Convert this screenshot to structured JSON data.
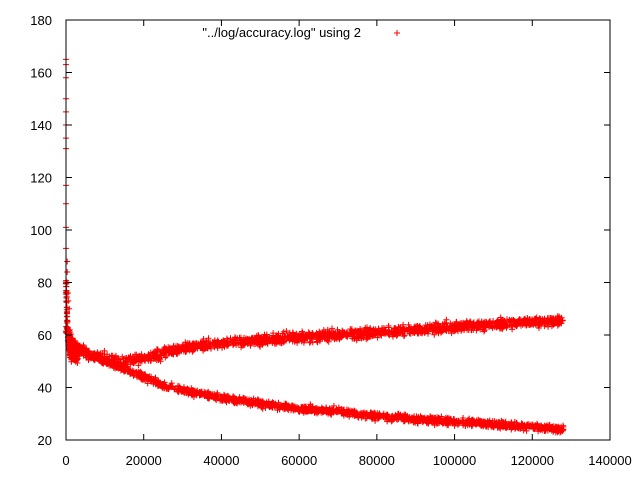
{
  "chart_data": {
    "type": "scatter",
    "title": "",
    "xlabel": "",
    "ylabel": "",
    "xlim": [
      0,
      140000
    ],
    "ylim": [
      20,
      180
    ],
    "x_ticks": [
      "0",
      "20000",
      "40000",
      "60000",
      "80000",
      "100000",
      "120000",
      "140000"
    ],
    "y_ticks": [
      "20",
      "40",
      "60",
      "80",
      "100",
      "120",
      "140",
      "160",
      "180"
    ],
    "x_tick_values": [
      0,
      20000,
      40000,
      60000,
      80000,
      100000,
      120000,
      140000
    ],
    "y_tick_values": [
      20,
      40,
      60,
      80,
      100,
      120,
      140,
      160,
      180
    ],
    "legend": {
      "position": "top-center",
      "label": "\"../log/accuracy.log\" using 2"
    },
    "marker": "+",
    "color": "#ff0000",
    "grid": false,
    "series": [
      {
        "name": "\"../log/accuracy.log\" using 2",
        "upper_branch_trend": [
          [
            500,
            62
          ],
          [
            2000,
            57
          ],
          [
            5000,
            53
          ],
          [
            10000,
            51
          ],
          [
            15000,
            50
          ],
          [
            20000,
            51
          ],
          [
            25000,
            53
          ],
          [
            30000,
            55
          ],
          [
            40000,
            57
          ],
          [
            50000,
            58
          ],
          [
            60000,
            59
          ],
          [
            70000,
            60
          ],
          [
            80000,
            61
          ],
          [
            90000,
            62
          ],
          [
            100000,
            63
          ],
          [
            110000,
            64
          ],
          [
            120000,
            65
          ],
          [
            128000,
            65
          ]
        ],
        "lower_branch_trend": [
          [
            500,
            62
          ],
          [
            2000,
            57
          ],
          [
            5000,
            53
          ],
          [
            10000,
            50
          ],
          [
            15000,
            47
          ],
          [
            20000,
            44
          ],
          [
            25000,
            41
          ],
          [
            30000,
            39
          ],
          [
            40000,
            36
          ],
          [
            50000,
            34
          ],
          [
            60000,
            32
          ],
          [
            70000,
            31
          ],
          [
            80000,
            29
          ],
          [
            90000,
            28
          ],
          [
            100000,
            27
          ],
          [
            110000,
            26
          ],
          [
            120000,
            25
          ],
          [
            128000,
            24
          ]
        ],
        "early_spike_points": [
          [
            0,
            165
          ],
          [
            0,
            163
          ],
          [
            0,
            158
          ],
          [
            0,
            150
          ],
          [
            0,
            145
          ],
          [
            0,
            140
          ],
          [
            0,
            135
          ],
          [
            0,
            131
          ],
          [
            0,
            117
          ],
          [
            0,
            110
          ],
          [
            0,
            101
          ],
          [
            0,
            93
          ],
          [
            300,
            88
          ],
          [
            300,
            84
          ],
          [
            300,
            80
          ],
          [
            500,
            76
          ],
          [
            600,
            73
          ],
          [
            800,
            70
          ]
        ]
      }
    ]
  }
}
